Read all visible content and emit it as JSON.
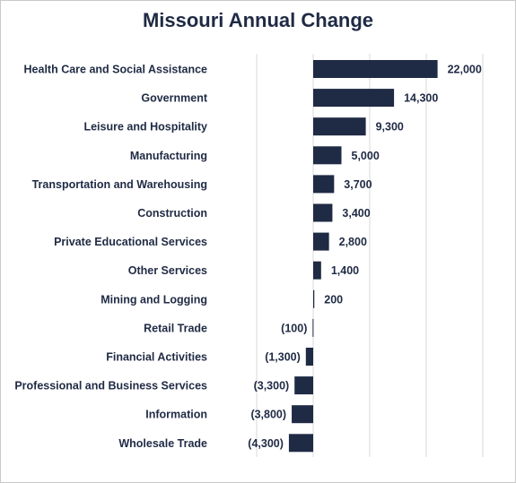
{
  "chart_data": {
    "type": "bar",
    "orientation": "horizontal",
    "title": "Missouri Annual Change",
    "categories": [
      "Health Care and Social Assistance",
      "Government",
      "Leisure and Hospitality",
      "Manufacturing",
      "Transportation and Warehousing",
      "Construction",
      "Private Educational Services",
      "Other Services",
      "Mining and Logging",
      "Retail Trade",
      "Financial Activities",
      "Professional and Business Services",
      "Information",
      "Wholesale Trade"
    ],
    "values": [
      22000,
      14300,
      9300,
      5000,
      3700,
      3400,
      2800,
      1400,
      200,
      -100,
      -1300,
      -3300,
      -3800,
      -4300
    ],
    "data_labels": [
      "22,000",
      "14,300",
      "9,300",
      "5,000",
      "3,700",
      "3,400",
      "2,800",
      "1,400",
      "200",
      "(100)",
      "(1,300)",
      "(3,300)",
      "(3,800)",
      "(4,300)"
    ],
    "xlim": [
      -10000,
      30000
    ],
    "grid": true,
    "bar_color": "#1f2a44",
    "text_color": "#1f2a44",
    "gridline_color": "#d9d9d9"
  }
}
